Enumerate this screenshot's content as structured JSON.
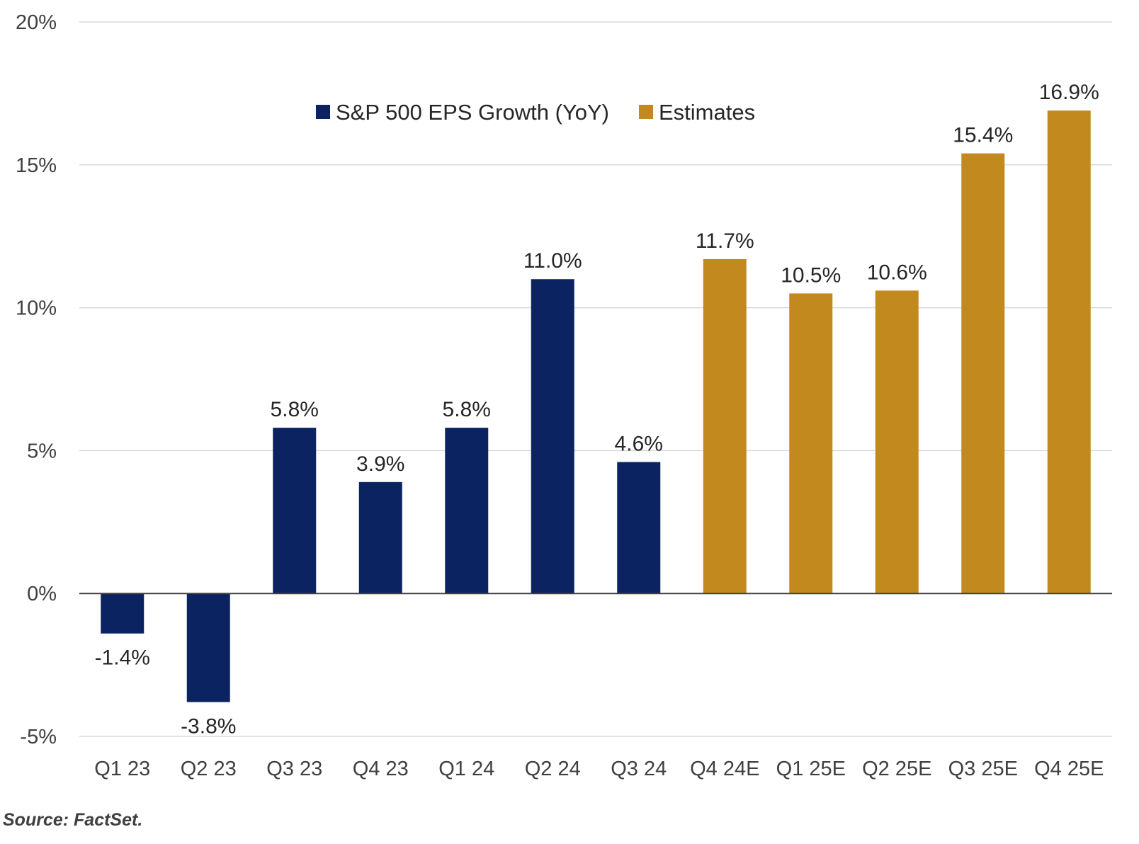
{
  "chart_data": {
    "type": "bar",
    "categories": [
      "Q1 23",
      "Q2 23",
      "Q3 23",
      "Q4 23",
      "Q1 24",
      "Q2 24",
      "Q3 24",
      "Q4 24E",
      "Q1 25E",
      "Q2 25E",
      "Q3 25E",
      "Q4 25E"
    ],
    "series": [
      {
        "name": "S&P 500 EPS Growth (YoY)",
        "color": "#0B2461",
        "values": [
          -1.4,
          -3.8,
          5.8,
          3.9,
          5.8,
          11.0,
          4.6,
          null,
          null,
          null,
          null,
          null
        ]
      },
      {
        "name": "Estimates",
        "color": "#C28A1E",
        "values": [
          null,
          null,
          null,
          null,
          null,
          null,
          null,
          11.7,
          10.5,
          10.6,
          15.4,
          16.9
        ]
      }
    ],
    "data_labels": [
      "-1.4%",
      "-3.8%",
      "5.8%",
      "3.9%",
      "5.8%",
      "11.0%",
      "4.6%",
      "11.7%",
      "10.5%",
      "10.6%",
      "15.4%",
      "16.9%"
    ],
    "yticks": [
      20,
      15,
      10,
      5,
      0,
      -5
    ],
    "ytick_labels": [
      "20%",
      "15%",
      "10%",
      "5%",
      "0%",
      "-5%"
    ],
    "ylim": [
      -5,
      20
    ],
    "grid": true,
    "legend_position": "top-center"
  },
  "source": "Source: FactSet."
}
